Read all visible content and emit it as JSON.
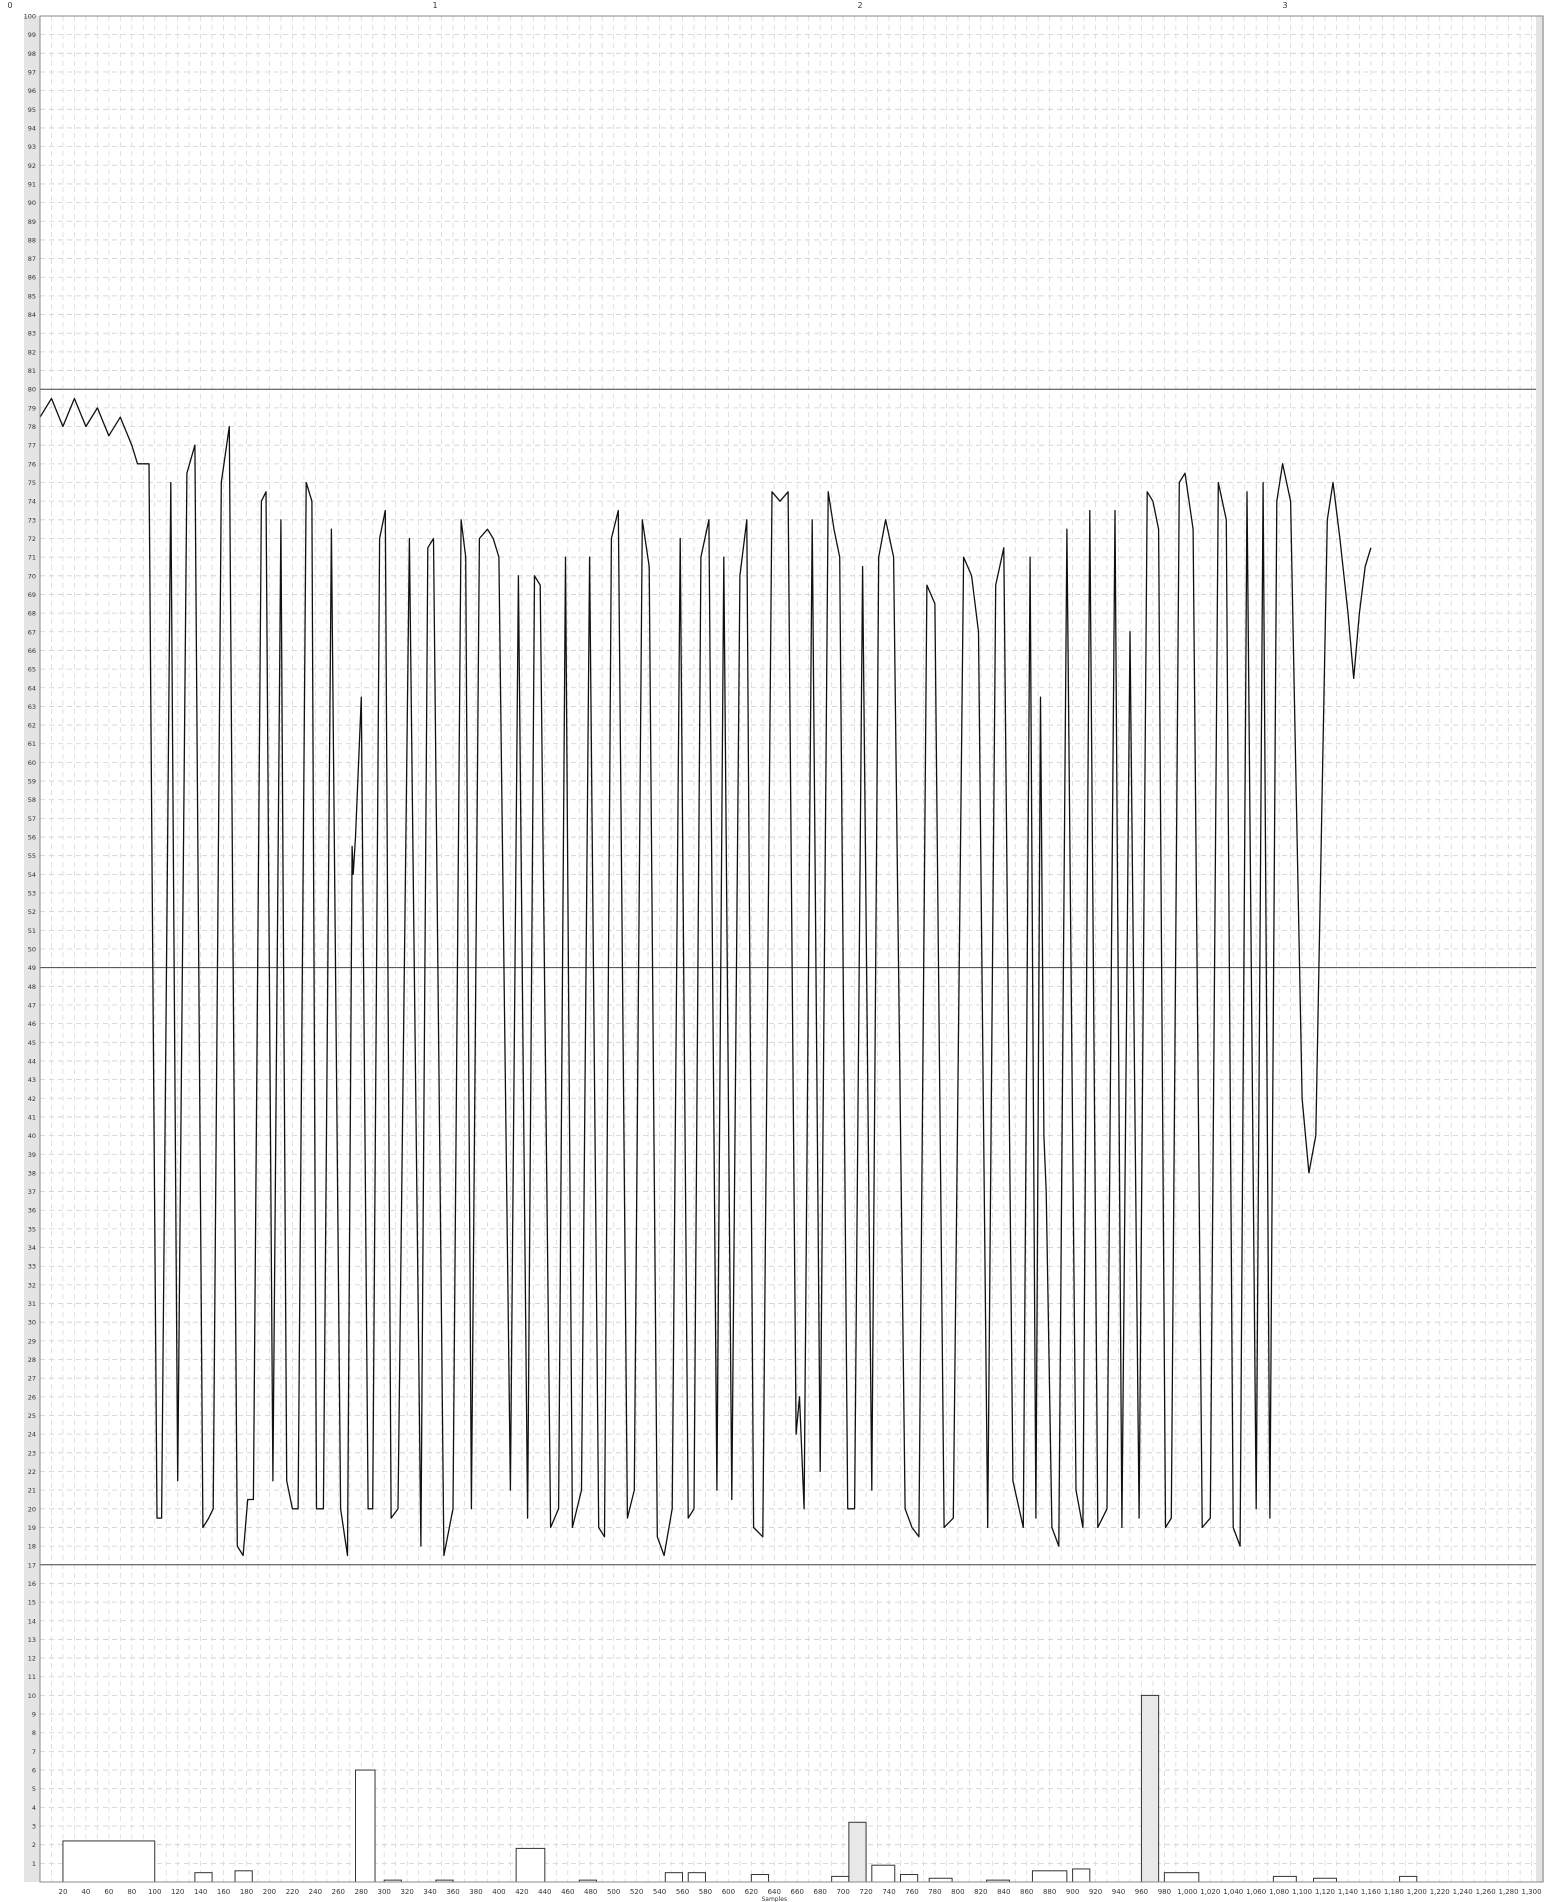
{
  "chart_data": {
    "type": "line",
    "top_axis_labels": [
      "0",
      "1",
      "2",
      "3"
    ],
    "top_axis_positions": [
      0,
      1,
      2,
      3
    ],
    "x_axis_label": "Samples",
    "xlim": [
      0,
      1310
    ],
    "ylim": [
      0,
      100
    ],
    "x_ticks": [
      20,
      40,
      60,
      80,
      100,
      120,
      140,
      160,
      180,
      200,
      220,
      240,
      260,
      280,
      300,
      320,
      340,
      360,
      380,
      400,
      420,
      440,
      460,
      480,
      500,
      520,
      540,
      560,
      580,
      600,
      620,
      640,
      660,
      680,
      700,
      720,
      740,
      760,
      780,
      800,
      820,
      840,
      860,
      880,
      900,
      920,
      940,
      960,
      980,
      1000,
      1020,
      1040,
      1060,
      1080,
      1100,
      1120,
      1140,
      1160,
      1180,
      1200,
      1220,
      1240,
      1260,
      1280,
      1300
    ],
    "x_tick_labels": [
      "20",
      "40",
      "60",
      "80",
      "100",
      "120",
      "140",
      "160",
      "180",
      "200",
      "220",
      "240",
      "260",
      "280",
      "300",
      "320",
      "340",
      "360",
      "380",
      "400",
      "420",
      "440",
      "460",
      "480",
      "500",
      "520",
      "540",
      "560",
      "580",
      "600",
      "620",
      "640",
      "660",
      "680",
      "700",
      "720",
      "740",
      "760",
      "780",
      "800",
      "820",
      "840",
      "860",
      "880",
      "900",
      "920",
      "940",
      "960",
      "980",
      "1,000",
      "1,020",
      "1,040",
      "1,060",
      "1,080",
      "1,100",
      "1,120",
      "1,140",
      "1,160",
      "1,180",
      "1,200",
      "1,220",
      "1,240",
      "1,260",
      "1,280",
      "1,300"
    ],
    "y_ticks": [
      1,
      2,
      3,
      4,
      5,
      6,
      7,
      8,
      9,
      10,
      11,
      12,
      13,
      14,
      15,
      16,
      17,
      18,
      19,
      20,
      21,
      22,
      23,
      24,
      25,
      26,
      27,
      28,
      29,
      30,
      31,
      32,
      33,
      34,
      35,
      36,
      37,
      38,
      39,
      40,
      41,
      42,
      43,
      44,
      45,
      46,
      47,
      48,
      49,
      50,
      51,
      52,
      53,
      54,
      55,
      56,
      57,
      58,
      59,
      60,
      61,
      62,
      63,
      64,
      65,
      66,
      67,
      68,
      69,
      70,
      71,
      72,
      73,
      74,
      75,
      76,
      77,
      78,
      79,
      80,
      81,
      82,
      83,
      84,
      85,
      86,
      87,
      88,
      89,
      90,
      91,
      92,
      93,
      94,
      95,
      96,
      97,
      98,
      99,
      100
    ],
    "horizontal_lines": [
      80,
      49,
      17
    ],
    "grid": true,
    "series": [
      {
        "values": [
          [
            0,
            78.5
          ],
          [
            10,
            79.5
          ],
          [
            20,
            78
          ],
          [
            30,
            79.5
          ],
          [
            40,
            78
          ],
          [
            50,
            79
          ],
          [
            60,
            77.5
          ],
          [
            70,
            78.5
          ],
          [
            80,
            77
          ],
          [
            85,
            76
          ],
          [
            95,
            76
          ],
          [
            102,
            19.5
          ],
          [
            106,
            19.5
          ],
          [
            114,
            75
          ],
          [
            120,
            21.5
          ],
          [
            128,
            75.5
          ],
          [
            135,
            77
          ],
          [
            142,
            19
          ],
          [
            147,
            19.5
          ],
          [
            151,
            20
          ],
          [
            158,
            75
          ],
          [
            165,
            78
          ],
          [
            172,
            18
          ],
          [
            177,
            17.5
          ],
          [
            181,
            20.5
          ],
          [
            186,
            20.5
          ],
          [
            193,
            74
          ],
          [
            197,
            74.5
          ],
          [
            203,
            21.5
          ],
          [
            210,
            73
          ],
          [
            215,
            21.5
          ],
          [
            220,
            20
          ],
          [
            225,
            20
          ],
          [
            232,
            75
          ],
          [
            237,
            74
          ],
          [
            241,
            20
          ],
          [
            247,
            20
          ],
          [
            254,
            72.5
          ],
          [
            262,
            20
          ],
          [
            268,
            17.5
          ],
          [
            272,
            55.5
          ],
          [
            273,
            54
          ],
          [
            275,
            56
          ],
          [
            280,
            63.5
          ],
          [
            286,
            20
          ],
          [
            290,
            20
          ],
          [
            296,
            72
          ],
          [
            301,
            73.5
          ],
          [
            306,
            19.5
          ],
          [
            312,
            20
          ],
          [
            322,
            72
          ],
          [
            332,
            18
          ],
          [
            338,
            71.5
          ],
          [
            343,
            72
          ],
          [
            352,
            17.5
          ],
          [
            360,
            20
          ],
          [
            367,
            73
          ],
          [
            371,
            71
          ],
          [
            376,
            20
          ],
          [
            383,
            72
          ],
          [
            390,
            72.5
          ],
          [
            395,
            72
          ],
          [
            400,
            71
          ],
          [
            410,
            21
          ],
          [
            417,
            70
          ],
          [
            425,
            19.5
          ],
          [
            431,
            70
          ],
          [
            436,
            69.5
          ],
          [
            445,
            19
          ],
          [
            452,
            20
          ],
          [
            458,
            71
          ],
          [
            464,
            19
          ],
          [
            472,
            21
          ],
          [
            479,
            71
          ],
          [
            487,
            19
          ],
          [
            492,
            18.5
          ],
          [
            498,
            72
          ],
          [
            504,
            73.5
          ],
          [
            512,
            19.5
          ],
          [
            518,
            21
          ],
          [
            525,
            73
          ],
          [
            531,
            70.5
          ],
          [
            538,
            18.5
          ],
          [
            544,
            17.5
          ],
          [
            551,
            20
          ],
          [
            558,
            72
          ],
          [
            565,
            19.5
          ],
          [
            570,
            20
          ],
          [
            576,
            71
          ],
          [
            583,
            73
          ],
          [
            590,
            21
          ],
          [
            596,
            71
          ],
          [
            603,
            20.5
          ],
          [
            610,
            70
          ],
          [
            616,
            73
          ],
          [
            622,
            19
          ],
          [
            630,
            18.5
          ],
          [
            638,
            74.5
          ],
          [
            645,
            74
          ],
          [
            652,
            74.5
          ],
          [
            659,
            24
          ],
          [
            662,
            26
          ],
          [
            666,
            20
          ],
          [
            673,
            73
          ],
          [
            680,
            22
          ],
          [
            687,
            74.5
          ],
          [
            692,
            72.5
          ],
          [
            697,
            71
          ],
          [
            704,
            20
          ],
          [
            710,
            20
          ],
          [
            717,
            70.5
          ],
          [
            725,
            21
          ],
          [
            731,
            71
          ],
          [
            737,
            73
          ],
          [
            744,
            71
          ],
          [
            754,
            20
          ],
          [
            760,
            19
          ],
          [
            766,
            18.5
          ],
          [
            773,
            69.5
          ],
          [
            780,
            68.5
          ],
          [
            788,
            19
          ],
          [
            796,
            19.5
          ],
          [
            805,
            71
          ],
          [
            812,
            70
          ],
          [
            818,
            67
          ],
          [
            826,
            19
          ],
          [
            833,
            69.5
          ],
          [
            840,
            71.5
          ],
          [
            848,
            21.5
          ],
          [
            857,
            19
          ],
          [
            863,
            71
          ],
          [
            868,
            19.5
          ],
          [
            872,
            63.5
          ],
          [
            875,
            40
          ],
          [
            877,
            37
          ],
          [
            882,
            19
          ],
          [
            888,
            18
          ],
          [
            895,
            72.5
          ],
          [
            903,
            21
          ],
          [
            909,
            19
          ],
          [
            915,
            73.5
          ],
          [
            922,
            19
          ],
          [
            930,
            20
          ],
          [
            937,
            73.5
          ],
          [
            943,
            19
          ],
          [
            950,
            67
          ],
          [
            958,
            19.5
          ],
          [
            965,
            74.5
          ],
          [
            970,
            74
          ],
          [
            975,
            72.5
          ],
          [
            981,
            19
          ],
          [
            986,
            19.5
          ],
          [
            993,
            75
          ],
          [
            998,
            75.5
          ],
          [
            1005,
            72.5
          ],
          [
            1013,
            19
          ],
          [
            1020,
            19.5
          ],
          [
            1027,
            75
          ],
          [
            1034,
            73
          ],
          [
            1040,
            19
          ],
          [
            1046,
            18
          ],
          [
            1052,
            74.5
          ],
          [
            1060,
            20
          ],
          [
            1066,
            75
          ],
          [
            1072,
            19.5
          ],
          [
            1078,
            74
          ],
          [
            1083,
            76
          ],
          [
            1090,
            74
          ],
          [
            1100,
            42
          ],
          [
            1106,
            38
          ],
          [
            1112,
            40
          ],
          [
            1118,
            60
          ],
          [
            1122,
            73
          ],
          [
            1127,
            75
          ],
          [
            1133,
            72
          ],
          [
            1140,
            68
          ],
          [
            1145,
            64.5
          ],
          [
            1150,
            68
          ],
          [
            1155,
            70.5
          ],
          [
            1160,
            71.5
          ]
        ]
      }
    ],
    "bars": {
      "bins": [
        [
          20,
          100,
          2.2,
          "#ffffff"
        ],
        [
          135,
          150,
          0.5,
          "#ffffff"
        ],
        [
          170,
          185,
          0.6,
          "#ffffff"
        ],
        [
          275,
          292,
          6.0,
          "#ffffff"
        ],
        [
          300,
          315,
          0.1,
          "#ffffff"
        ],
        [
          345,
          360,
          0.1,
          "#ffffff"
        ],
        [
          415,
          440,
          1.8,
          "#ffffff"
        ],
        [
          470,
          485,
          0.1,
          "#ffffff"
        ],
        [
          545,
          560,
          0.5,
          "#ffffff"
        ],
        [
          565,
          580,
          0.5,
          "#ffffff"
        ],
        [
          620,
          635,
          0.4,
          "#ffffff"
        ],
        [
          690,
          705,
          0.3,
          "#ffffff"
        ],
        [
          705,
          720,
          3.2,
          "#e8e8e8"
        ],
        [
          725,
          745,
          0.9,
          "#ffffff"
        ],
        [
          750,
          765,
          0.4,
          "#ffffff"
        ],
        [
          775,
          795,
          0.2,
          "#ffffff"
        ],
        [
          825,
          845,
          0.1,
          "#ffffff"
        ],
        [
          865,
          895,
          0.6,
          "#ffffff"
        ],
        [
          900,
          915,
          0.7,
          "#ffffff"
        ],
        [
          960,
          975,
          10.0,
          "#e8e8e8"
        ],
        [
          980,
          1010,
          0.5,
          "#ffffff"
        ],
        [
          1075,
          1095,
          0.3,
          "#ffffff"
        ],
        [
          1110,
          1130,
          0.2,
          "#ffffff"
        ],
        [
          1185,
          1200,
          0.3,
          "#ffffff"
        ]
      ]
    }
  }
}
